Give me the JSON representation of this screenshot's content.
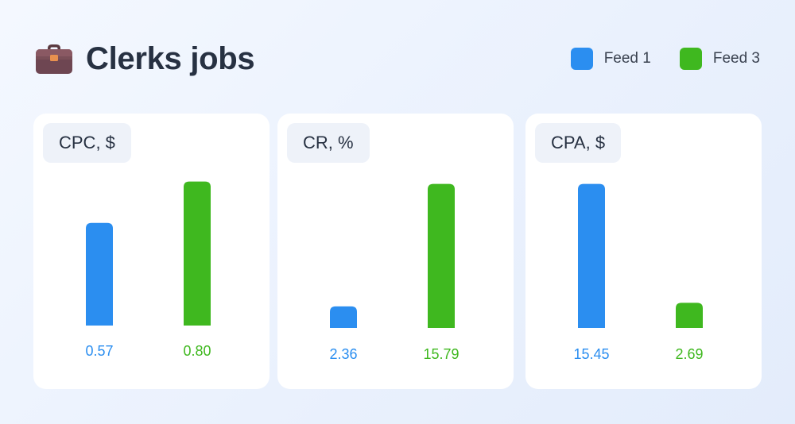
{
  "header": {
    "title": "Clerks jobs",
    "icon": "briefcase-icon"
  },
  "legend": {
    "items": [
      {
        "label": "Feed 1",
        "color": "#2b8ef0"
      },
      {
        "label": "Feed 3",
        "color": "#3fb81f"
      }
    ]
  },
  "chart_data": [
    {
      "type": "bar",
      "title": "CPC, $",
      "categories": [
        "Feed 1",
        "Feed 3"
      ],
      "values": [
        0.57,
        0.8
      ],
      "labels": [
        "0.57",
        "0.80"
      ],
      "colors": [
        "#2b8ef0",
        "#3fb81f"
      ]
    },
    {
      "type": "bar",
      "title": "CR, %",
      "categories": [
        "Feed 1",
        "Feed 3"
      ],
      "values": [
        2.36,
        15.79
      ],
      "labels": [
        "2.36",
        "15.79"
      ],
      "colors": [
        "#2b8ef0",
        "#3fb81f"
      ]
    },
    {
      "type": "bar",
      "title": "CPA, $",
      "categories": [
        "Feed 1",
        "Feed 3"
      ],
      "values": [
        15.45,
        2.69
      ],
      "labels": [
        "15.45",
        "2.69"
      ],
      "colors": [
        "#2b8ef0",
        "#3fb81f"
      ]
    }
  ]
}
